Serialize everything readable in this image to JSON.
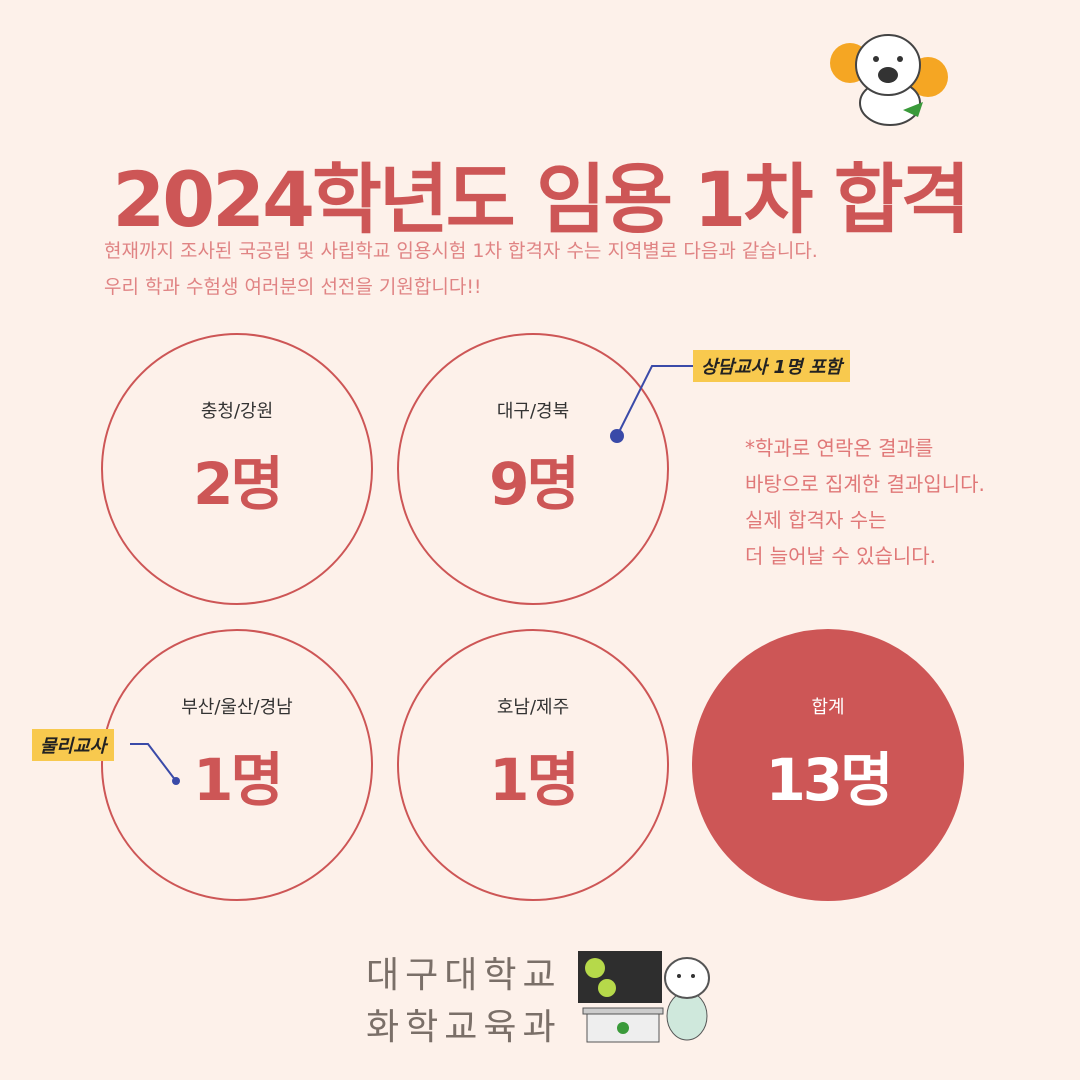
{
  "title": "2024학년도 임용 1차 합격",
  "subtitle": [
    "현재까지 조사된 국공립 및 사립학교 임용시험 1차 합격자 수는 지역별로 다음과 같습니다.",
    "우리 학과 수험생 여러분의 선전을 기원합니다!!"
  ],
  "regions": [
    {
      "region": "충청/강원",
      "count": "2명"
    },
    {
      "region": "대구/경북",
      "count": "9명"
    },
    {
      "region": "부산/울산/경남",
      "count": "1명"
    },
    {
      "region": "호남/제주",
      "count": "1명"
    }
  ],
  "total": {
    "region": "합계",
    "count": "13명"
  },
  "annotations": {
    "daegu": "상담교사 1명 포함",
    "busan": "물리교사"
  },
  "note": [
    "*학과로 연락온 결과를",
    "바탕으로 집계한 결과입니다.",
    "실제 합격자 수는",
    "더 늘어날 수 있습니다."
  ],
  "department": [
    "대구대학교",
    "화학교육과"
  ],
  "colors": {
    "accent": "#cd5656",
    "background": "#fdf1ea",
    "tag": "#f8c94e",
    "pointer": "#3a4aa8"
  },
  "icons": [
    "tiger-mascot-cheering",
    "tiger-mascot-teacher"
  ]
}
